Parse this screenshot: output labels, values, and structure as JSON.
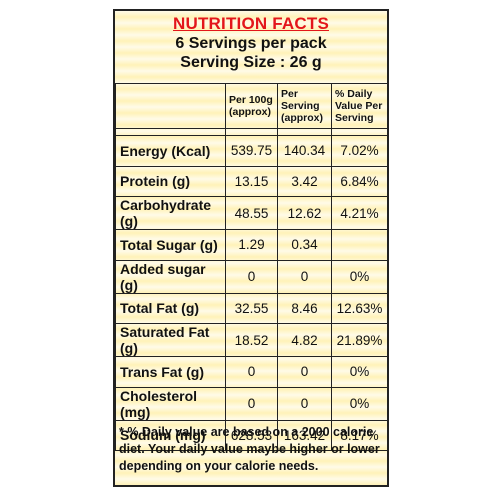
{
  "header": {
    "title": "NUTRITION FACTS",
    "servings": "6 Servings per pack",
    "serving_size": "Serving Size : 26 g"
  },
  "columns": [
    "Per 100g (approx)",
    "Per Serving (approx)",
    "% Daily Value Per Serving"
  ],
  "rows": [
    {
      "name": "Energy (Kcal)",
      "per100": "539.75",
      "perServing": "140.34",
      "dv": "7.02%"
    },
    {
      "name": "Protein (g)",
      "per100": "13.15",
      "perServing": "3.42",
      "dv": "6.84%"
    },
    {
      "name": "Carbohydrate (g)",
      "per100": "48.55",
      "perServing": "12.62",
      "dv": "4.21%"
    },
    {
      "name": "Total Sugar (g)",
      "per100": "1.29",
      "perServing": "0.34",
      "dv": ""
    },
    {
      "name": "Added sugar (g)",
      "per100": "0",
      "perServing": "0",
      "dv": "0%"
    },
    {
      "name": "Total Fat (g)",
      "per100": "32.55",
      "perServing": "8.46",
      "dv": "12.63%"
    },
    {
      "name": "Saturated Fat (g)",
      "per100": "18.52",
      "perServing": "4.82",
      "dv": "21.89%"
    },
    {
      "name": "Trans Fat (g)",
      "per100": "0",
      "perServing": "0",
      "dv": "0%"
    },
    {
      "name": "Cholesterol (mg)",
      "per100": "0",
      "perServing": "0",
      "dv": "0%"
    },
    {
      "name": "Sodium (mg)",
      "per100": "628.53",
      "perServing": "163.42",
      "dv": "8.17%"
    }
  ],
  "footnote": "* % Daily value are based on a 2000 calorie diet. Your daily value maybe higher or lower depending on your calorie needs.",
  "colors": {
    "title": "#e3161b",
    "border": "#222222",
    "background": "#fff6cc"
  }
}
